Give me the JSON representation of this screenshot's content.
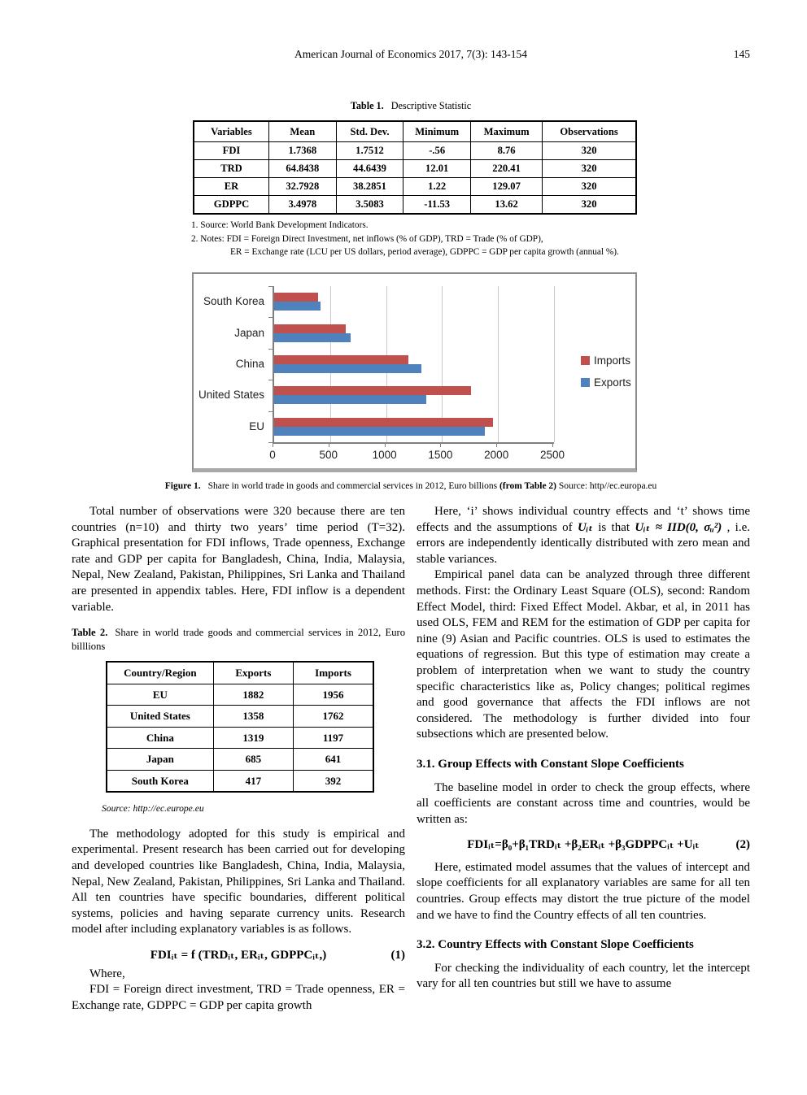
{
  "page": {
    "journal_header": "American Journal of Economics 2017, 7(3): 143-154",
    "page_number": "145"
  },
  "table1": {
    "caption_label": "Table 1.",
    "caption_text": "Descriptive Statistic",
    "headers": [
      "Variables",
      "Mean",
      "Std. Dev.",
      "Minimum",
      "Maximum",
      "Observations"
    ],
    "rows": [
      [
        "FDI",
        "1.7368",
        "1.7512",
        "-.56",
        "8.76",
        "320"
      ],
      [
        "TRD",
        "64.8438",
        "44.6439",
        "12.01",
        "220.41",
        "320"
      ],
      [
        "ER",
        "32.7928",
        "38.2851",
        "1.22",
        "129.07",
        "320"
      ],
      [
        "GDPPC",
        "3.4978",
        "3.5083",
        "-11.53",
        "13.62",
        "320"
      ]
    ],
    "notes": [
      "1. Source: World Bank Development Indicators.",
      "2. Notes:  FDI = Foreign Direct Investment, net inflows (% of GDP), TRD = Trade (% of GDP),",
      "ER = Exchange rate (LCU per US dollars, period average), GDPPC = GDP per capita growth (annual %)."
    ]
  },
  "figure1": {
    "caption_label": "Figure 1.",
    "caption_text": "Share in world trade in goods and commercial services in 2012, Euro billions ",
    "caption_ref": "(from Table 2)",
    "caption_source": " Source: http//ec.europa.eu",
    "chart_data": {
      "type": "bar",
      "orientation": "horizontal",
      "categories_top_to_bottom": [
        "South Korea",
        "Japan",
        "China",
        "United States",
        "EU"
      ],
      "series": [
        {
          "name": "Imports",
          "color": "#C0504D",
          "values": [
            392,
            641,
            1197,
            1762,
            1956
          ]
        },
        {
          "name": "Exports",
          "color": "#4F81BD",
          "values": [
            417,
            685,
            1319,
            1358,
            1882
          ]
        }
      ],
      "xlim": [
        0,
        2500
      ],
      "xticks": [
        0,
        500,
        1000,
        1500,
        2000,
        2500
      ],
      "grid": true,
      "legend_position": "right"
    }
  },
  "left_column": {
    "para1": "Total number of observations were 320 because there are ten countries (n=10) and thirty two years’ time period (T=32). Graphical presentation for FDI inflows, Trade openness, Exchange rate and GDP per capita for Bangladesh, China, India, Malaysia, Nepal, New Zealand, Pakistan, Philippines, Sri Lanka and Thailand are presented in appendix tables. Here, FDI inflow is a dependent variable.",
    "table2": {
      "caption_label": "Table 2.",
      "caption_text": "Share in world trade goods and commercial services in 2012, Euro billlions",
      "headers": [
        "Country/Region",
        "Exports",
        "Imports"
      ],
      "rows": [
        [
          "EU",
          "1882",
          "1956"
        ],
        [
          "United States",
          "1358",
          "1762"
        ],
        [
          "China",
          "1319",
          "1197"
        ],
        [
          "Japan",
          "685",
          "641"
        ],
        [
          "South Korea",
          "417",
          "392"
        ]
      ],
      "source": "Source: http://ec.europe.eu"
    },
    "para2": "The methodology adopted for this study is empirical and experimental. Present research has been carried out for developing and developed countries like Bangladesh, China, India, Malaysia, Nepal, New Zealand, Pakistan, Philippines, Sri Lanka and Thailand. All ten countries have specific boundaries, different political systems, policies and having separate currency units. Research model after including explanatory variables is as follows.",
    "equation1": {
      "body": "FDIᵢₜ = f (TRDᵢₜ, ERᵢₜ, GDPPCᵢₜ,)",
      "number": "(1)"
    },
    "where_label": "Where,",
    "where_text": "FDI = Foreign direct investment, TRD =  Trade openness, ER = Exchange rate, GDPPC = GDP per capita growth"
  },
  "right_column": {
    "para1_parts": {
      "t1": "Here, ‘i’ shows individual country effects and ‘t’ shows time effects and the assumptions of ",
      "m1": "Uᵢₜ",
      "t2": " is that ",
      "m2": "Uᵢₜ ≈ IID(0, σᵤ²)",
      "t3": " , i.e. errors are independently identically distributed with zero mean and stable variances."
    },
    "para2": "Empirical panel data can be analyzed through three different methods. First: the Ordinary Least Square (OLS), second: Random Effect Model, third: Fixed Effect Model. Akbar, et al, in 2011 has used OLS, FEM and REM for the estimation of GDP per capita for nine (9) Asian and Pacific countries. OLS is used to estimates the equations of regression. But this type of estimation may create a problem of interpretation when we want to study the country specific characteristics like as, Policy changes; political regimes and good governance that affects the FDI inflows are not considered. The methodology is further divided into four subsections which are presented below.",
    "heading31": "3.1. Group Effects with Constant Slope Coefficients",
    "para31a": "The baseline model in order to check the group effects, where all coefficients are constant across time and countries, would be written as:",
    "equation2": {
      "body": "FDIᵢₜ=β₀+β₁TRDᵢₜ +β₂ERᵢₜ +β₃GDPPCᵢₜ +Uᵢₜ",
      "number": "(2)"
    },
    "para31b": "Here, estimated model assumes that the values of intercept and slope coefficients for all explanatory variables are same for all ten countries. Group effects may distort the true picture of the model and we have to find the Country effects of all ten countries.",
    "heading32": "3.2. Country Effects with Constant Slope Coefficients",
    "para32": "For checking the individuality of each country, let the intercept vary for all ten countries but still we have to assume"
  }
}
